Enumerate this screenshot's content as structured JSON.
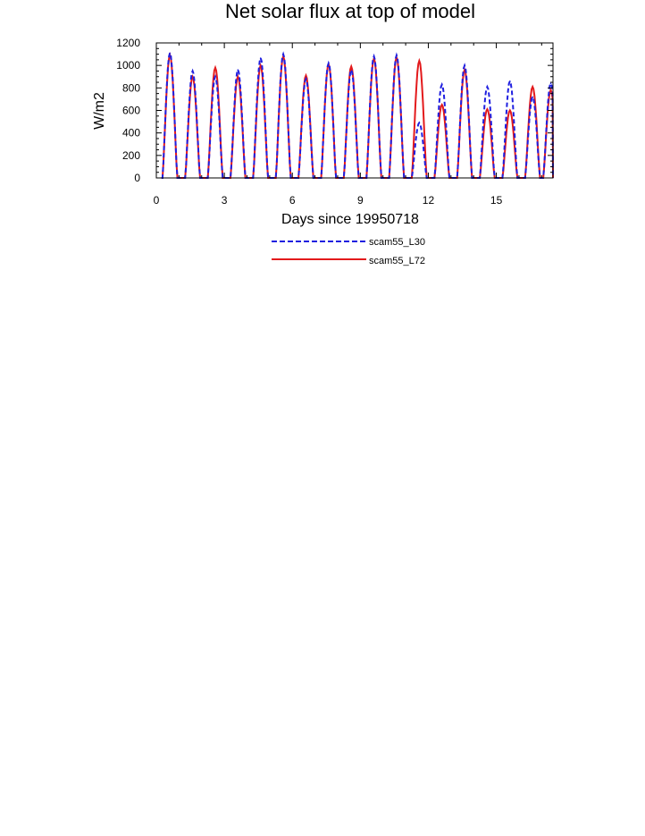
{
  "chart_data": {
    "type": "line",
    "title": "Net solar flux at top of model",
    "xlabel": "Days since 19950718",
    "ylabel": "W/m2",
    "xlim": [
      0,
      17.5
    ],
    "ylim": [
      0,
      1200
    ],
    "x_ticks": [
      0,
      3,
      6,
      9,
      12,
      15
    ],
    "x_tick_labels": [
      "0",
      "3",
      "6",
      "9",
      "12",
      "15"
    ],
    "y_ticks": [
      0,
      200,
      400,
      600,
      800,
      1000,
      1200
    ],
    "y_tick_labels": [
      "0",
      "200",
      "400",
      "600",
      "800",
      "1000",
      "1200"
    ],
    "grid": false,
    "legend_position": "bottom",
    "series": [
      {
        "name": "scam55_L30",
        "color": "#1f1fe0",
        "style": "dashed",
        "daily_peaks": [
          {
            "day": 0.6,
            "value": 1110
          },
          {
            "day": 1.6,
            "value": 950
          },
          {
            "day": 2.6,
            "value": 900
          },
          {
            "day": 3.6,
            "value": 960
          },
          {
            "day": 4.6,
            "value": 1065
          },
          {
            "day": 5.6,
            "value": 1100
          },
          {
            "day": 6.6,
            "value": 880
          },
          {
            "day": 7.6,
            "value": 1020
          },
          {
            "day": 8.6,
            "value": 960
          },
          {
            "day": 9.6,
            "value": 1080
          },
          {
            "day": 10.6,
            "value": 1090
          },
          {
            "day": 11.6,
            "value": 490
          },
          {
            "day": 12.6,
            "value": 830
          },
          {
            "day": 13.6,
            "value": 1000
          },
          {
            "day": 14.6,
            "value": 810
          },
          {
            "day": 15.6,
            "value": 860
          },
          {
            "day": 16.6,
            "value": 720
          },
          {
            "day": 17.4,
            "value": 840
          }
        ]
      },
      {
        "name": "scam55_L72",
        "color": "#e31a1c",
        "style": "solid",
        "daily_peaks": [
          {
            "day": 0.6,
            "value": 1090
          },
          {
            "day": 1.6,
            "value": 900
          },
          {
            "day": 2.6,
            "value": 980
          },
          {
            "day": 3.6,
            "value": 900
          },
          {
            "day": 4.6,
            "value": 1000
          },
          {
            "day": 5.6,
            "value": 1080
          },
          {
            "day": 6.6,
            "value": 910
          },
          {
            "day": 7.6,
            "value": 1010
          },
          {
            "day": 8.6,
            "value": 990
          },
          {
            "day": 9.6,
            "value": 1060
          },
          {
            "day": 10.6,
            "value": 1070
          },
          {
            "day": 11.6,
            "value": 1040
          },
          {
            "day": 12.6,
            "value": 650
          },
          {
            "day": 13.6,
            "value": 960
          },
          {
            "day": 14.6,
            "value": 610
          },
          {
            "day": 15.6,
            "value": 600
          },
          {
            "day": 16.6,
            "value": 810
          },
          {
            "day": 17.4,
            "value": 780
          }
        ]
      }
    ]
  }
}
